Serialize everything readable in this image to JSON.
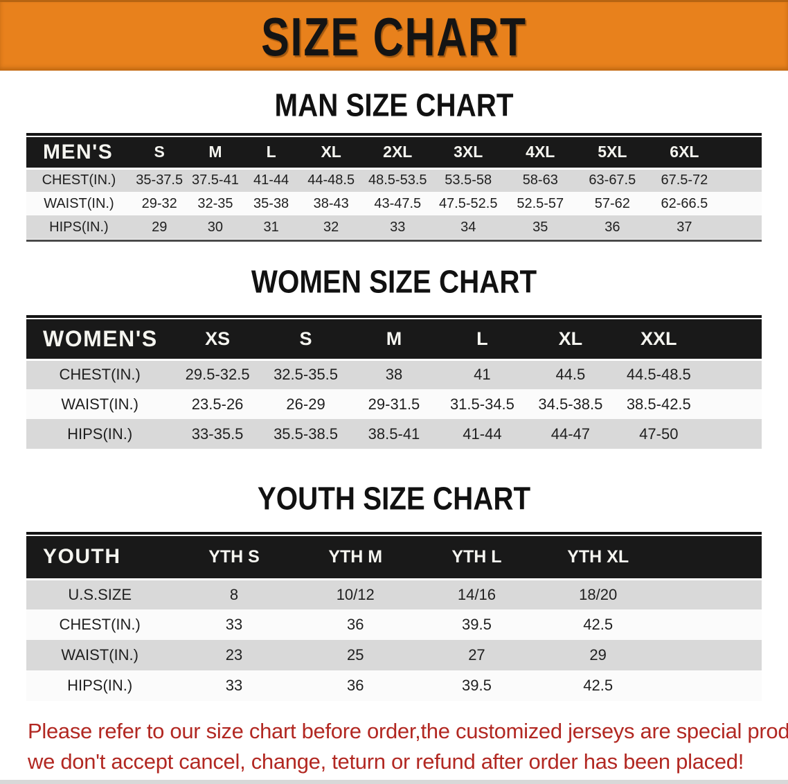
{
  "banner": {
    "title": "SIZE CHART"
  },
  "colors": {
    "banner_orange": "#e8811c",
    "header_black": "#191919",
    "row_gray": "#d9d9d9",
    "row_white": "#fbfbfb",
    "disclaimer_red": "#b22822"
  },
  "men_chart": {
    "section_title": "MAN SIZE CHART",
    "header_label": "MEN'S",
    "columns": [
      "S",
      "M",
      "L",
      "XL",
      "2XL",
      "3XL",
      "4XL",
      "5XL",
      "6XL"
    ],
    "rows": [
      {
        "label": "CHEST(IN.)",
        "values": [
          "35-37.5",
          "37.5-41",
          "41-44",
          "44-48.5",
          "48.5-53.5",
          "53.5-58",
          "58-63",
          "63-67.5",
          "67.5-72"
        ]
      },
      {
        "label": "WAIST(IN.)",
        "values": [
          "29-32",
          "32-35",
          "35-38",
          "38-43",
          "43-47.5",
          "47.5-52.5",
          "52.5-57",
          "57-62",
          "62-66.5"
        ]
      },
      {
        "label": "HIPS(IN.)",
        "values": [
          "29",
          "30",
          "31",
          "32",
          "33",
          "34",
          "35",
          "36",
          "37"
        ]
      }
    ]
  },
  "women_chart": {
    "section_title": "WOMEN SIZE CHART",
    "header_label": "WOMEN'S",
    "columns": [
      "XS",
      "S",
      "M",
      "L",
      "XL",
      "XXL"
    ],
    "rows": [
      {
        "label": "CHEST(IN.)",
        "values": [
          "29.5-32.5",
          "32.5-35.5",
          "38",
          "41",
          "44.5",
          "44.5-48.5"
        ]
      },
      {
        "label": "WAIST(IN.)",
        "values": [
          "23.5-26",
          "26-29",
          "29-31.5",
          "31.5-34.5",
          "34.5-38.5",
          "38.5-42.5"
        ]
      },
      {
        "label": "HIPS(IN.)",
        "values": [
          "33-35.5",
          "35.5-38.5",
          "38.5-41",
          "41-44",
          "44-47",
          "47-50"
        ]
      }
    ]
  },
  "youth_chart": {
    "section_title": "YOUTH SIZE CHART",
    "header_label": "YOUTH",
    "columns": [
      "YTH S",
      "YTH M",
      "YTH L",
      "YTH XL"
    ],
    "rows": [
      {
        "label": "U.S.SIZE",
        "values": [
          "8",
          "10/12",
          "14/16",
          "18/20"
        ]
      },
      {
        "label": "CHEST(IN.)",
        "values": [
          "33",
          "36",
          "39.5",
          "42.5"
        ]
      },
      {
        "label": "WAIST(IN.)",
        "values": [
          "23",
          "25",
          "27",
          "29"
        ]
      },
      {
        "label": "HIPS(IN.)",
        "values": [
          "33",
          "36",
          "39.5",
          "42.5"
        ]
      }
    ]
  },
  "disclaimer": {
    "line1": "Please refer to our size chart before order,the customized jerseys are special products,",
    "line2": "we don't accept cancel, change, teturn or refund after order has been placed!"
  }
}
